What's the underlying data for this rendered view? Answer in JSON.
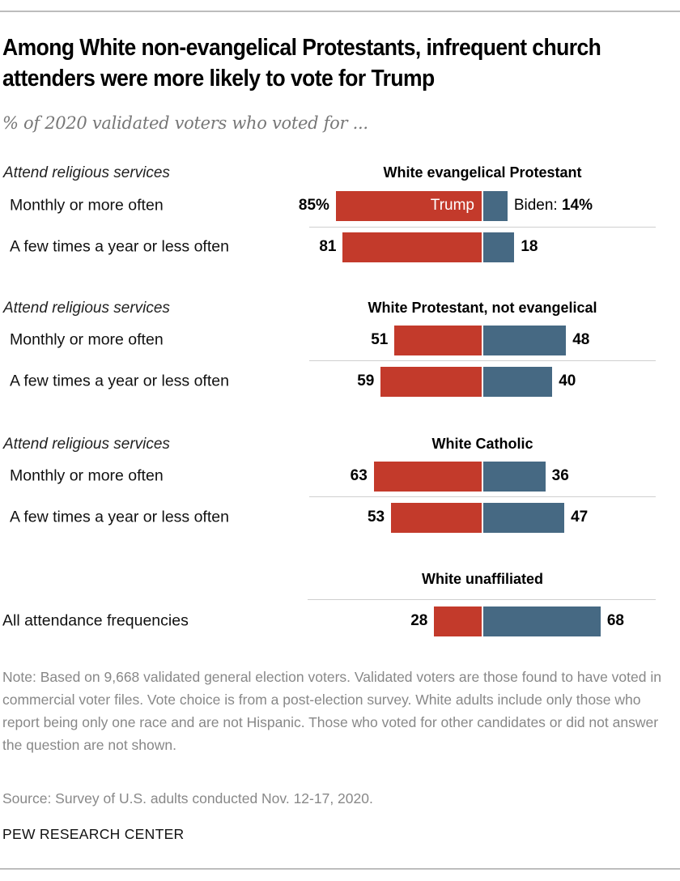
{
  "header": {
    "title": "Among White non-evangelical Protestants, infrequent church attenders were more likely to vote for Trump",
    "subtitle": "% of 2020 validated voters who voted for ..."
  },
  "colors": {
    "trump": "#c33a2b",
    "biden": "#466983",
    "divider": "#cfcfcf",
    "note": "#888888"
  },
  "chart_data": {
    "type": "bar",
    "orientation": "horizontal-diverging",
    "title": "Among White non-evangelical Protestants, infrequent church attenders were more likely to vote for Trump",
    "subtitle": "% of 2020 validated voters who voted for ...",
    "series": [
      {
        "name": "Trump",
        "color": "#c33a2b"
      },
      {
        "name": "Biden",
        "color": "#466983"
      }
    ],
    "groups": [
      {
        "title": "White evangelical Protestant",
        "section_label": "Attend religious services",
        "rows": [
          {
            "label": "Monthly or more often",
            "trump": 85,
            "biden": 14,
            "trump_text": "85%",
            "biden_text": "14%",
            "inbar_label": "Trump",
            "biden_prefix": "Biden: "
          },
          {
            "label": "A few times a year or less often",
            "trump": 81,
            "biden": 18,
            "trump_text": "81",
            "biden_text": "18"
          }
        ]
      },
      {
        "title": "White Protestant, not evangelical",
        "section_label": "Attend religious services",
        "rows": [
          {
            "label": "Monthly or more often",
            "trump": 51,
            "biden": 48,
            "trump_text": "51",
            "biden_text": "48"
          },
          {
            "label": "A few times a year or less often",
            "trump": 59,
            "biden": 40,
            "trump_text": "59",
            "biden_text": "40"
          }
        ]
      },
      {
        "title": "White Catholic",
        "section_label": "Attend religious services",
        "rows": [
          {
            "label": "Monthly or more often",
            "trump": 63,
            "biden": 36,
            "trump_text": "63",
            "biden_text": "36"
          },
          {
            "label": "A few times a year or less often",
            "trump": 53,
            "biden": 47,
            "trump_text": "53",
            "biden_text": "47"
          }
        ]
      },
      {
        "title": "White unaffiliated",
        "section_label": "",
        "rows": [
          {
            "label": "All attendance frequencies",
            "trump": 28,
            "biden": 68,
            "trump_text": "28",
            "biden_text": "68"
          }
        ]
      }
    ],
    "xlim": [
      0,
      100
    ],
    "grid": false
  },
  "footer": {
    "note": "Note: Based on 9,668 validated general election voters. Validated voters are those found to have voted in commercial voter files. Vote choice is from a post-election survey. White adults include only those who report being only one race and are not Hispanic. Those who voted for other candidates or did not answer the question are not shown.",
    "source": "Source: Survey of U.S. adults conducted Nov. 12-17, 2020.",
    "brand": "PEW RESEARCH CENTER"
  }
}
